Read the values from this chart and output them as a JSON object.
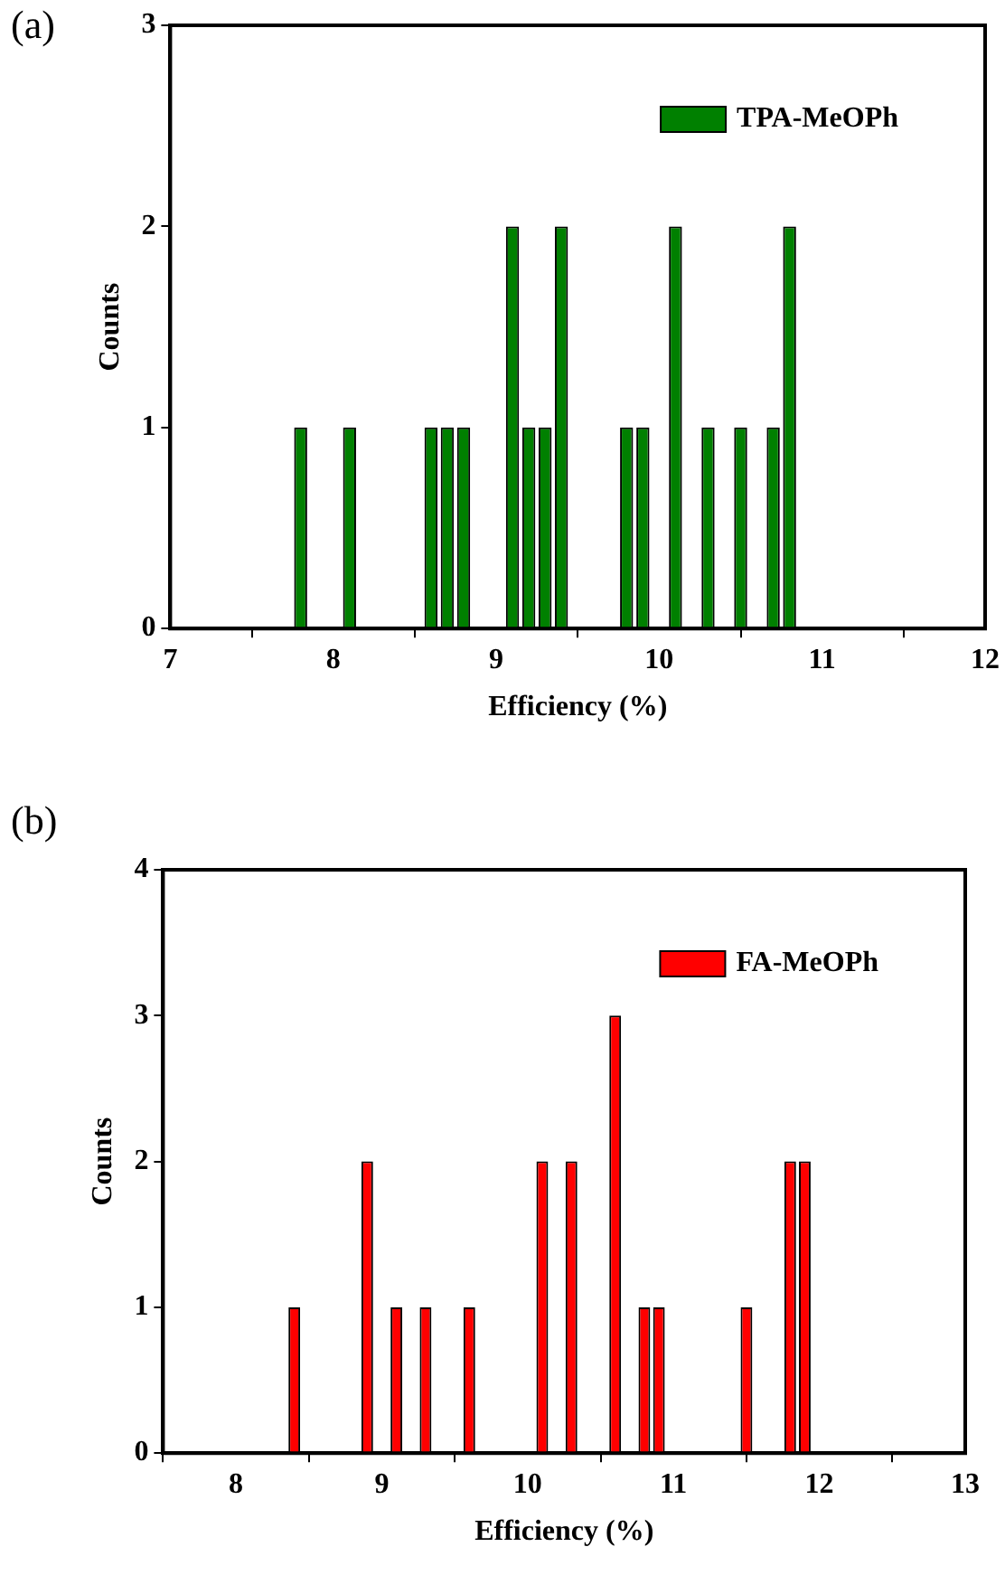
{
  "chart_data": [
    {
      "type": "bar",
      "annotations": [
        "(a)"
      ],
      "xlabel": "Efficiency (%)",
      "ylabel": "Counts",
      "x": [
        7.8,
        8.1,
        8.6,
        8.7,
        8.8,
        9.1,
        9.2,
        9.3,
        9.4,
        9.8,
        9.9,
        10.1,
        10.3,
        10.5,
        10.7,
        10.8
      ],
      "series": [
        {
          "name": "TPA-MeOPh",
          "color": "#008000",
          "values": [
            1,
            1,
            1,
            1,
            1,
            2,
            1,
            1,
            2,
            1,
            1,
            2,
            1,
            1,
            1,
            2
          ]
        }
      ],
      "xlim": [
        7,
        12
      ],
      "xticks": [
        7,
        8,
        9,
        10,
        11,
        12
      ],
      "ylim": [
        0,
        3
      ],
      "yticks": [
        0,
        1,
        2,
        3
      ],
      "legend": "top right"
    },
    {
      "type": "bar",
      "annotations": [
        "(b)"
      ],
      "xlabel": "Efficiency (%)",
      "ylabel": "Counts",
      "x": [
        8.4,
        8.9,
        9.1,
        9.3,
        9.6,
        10.1,
        10.3,
        10.6,
        10.8,
        10.9,
        11.5,
        11.8,
        11.9
      ],
      "series": [
        {
          "name": "FA-MeOPh",
          "color": "#ff0000",
          "values": [
            1,
            2,
            1,
            1,
            1,
            2,
            2,
            3,
            1,
            1,
            1,
            2,
            2
          ]
        }
      ],
      "xlim": [
        7.5,
        13
      ],
      "xticks": [
        8,
        9,
        10,
        11,
        12,
        13
      ],
      "ylim": [
        0,
        4
      ],
      "yticks": [
        0,
        1,
        2,
        3,
        4
      ],
      "legend": "top right"
    }
  ]
}
